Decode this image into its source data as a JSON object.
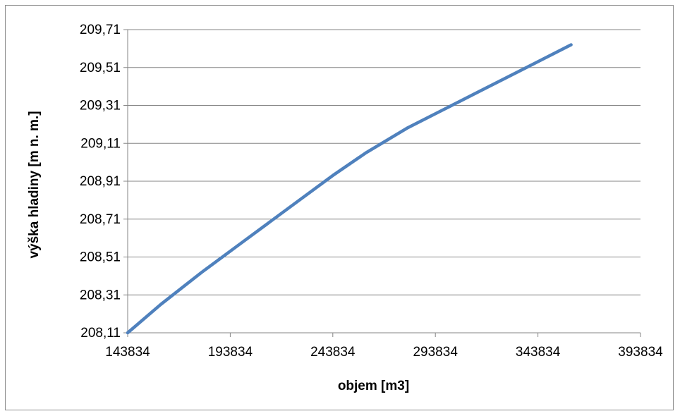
{
  "chart_data": {
    "type": "line",
    "title": "",
    "xlabel": "objem [m3]",
    "ylabel": "výška hladiny [m n. m.]",
    "xlim": [
      143834,
      393834
    ],
    "ylim": [
      208.11,
      209.71
    ],
    "x_ticks": [
      143834,
      193834,
      243834,
      293834,
      343834,
      393834
    ],
    "x_tick_labels": [
      "143834",
      "193834",
      "243834",
      "293834",
      "343834",
      "393834"
    ],
    "y_ticks": [
      208.11,
      208.31,
      208.51,
      208.71,
      208.91,
      209.11,
      209.31,
      209.51,
      209.71
    ],
    "y_tick_labels": [
      "208,11",
      "208,31",
      "208,51",
      "208,71",
      "208,91",
      "209,11",
      "209,31",
      "209,51",
      "209,71"
    ],
    "grid": "horizontal",
    "legend": "none",
    "series_color": "#4f81bd",
    "series": [
      {
        "x": [
          143834,
          160000,
          180000,
          200000,
          220000,
          243834,
          260000,
          280000,
          300000,
          320000,
          340000,
          360000
        ],
        "y": [
          208.11,
          208.26,
          208.43,
          208.59,
          208.75,
          208.94,
          209.06,
          209.19,
          209.3,
          209.41,
          209.52,
          209.63
        ]
      }
    ]
  }
}
